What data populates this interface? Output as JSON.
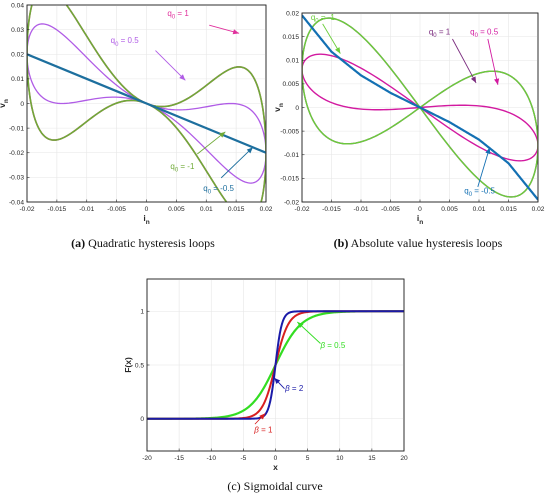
{
  "colors": {
    "q1": "#e0309c",
    "q05": "#b05ce6",
    "qm1": "#6faa37",
    "qm05": "#1d6f9e",
    "q1_abs": "#7a2b7e",
    "q05_abs": "#d21aa0",
    "qm1_abs": "#6bcd3a",
    "qm05_abs": "#1370b3",
    "beta05": "#33dd22",
    "beta1": "#d81f1f",
    "beta2": "#1a1aa8",
    "axis": "#262626",
    "grid": "#e6e6e6"
  },
  "chart_data": [
    {
      "type": "line",
      "caption_bold": "(a)",
      "caption_text": " Quadratic hysteresis loops",
      "xlabel": "i",
      "xlabel_sub": "n",
      "ylabel": "v",
      "ylabel_sub": "n",
      "xlim": [
        -0.02,
        0.02
      ],
      "ylim": [
        -0.04,
        0.04
      ],
      "xticks": [
        -0.02,
        -0.015,
        -0.01,
        -0.005,
        0,
        0.005,
        0.01,
        0.015,
        0.02
      ],
      "xtick_labels": [
        "-0.02",
        "-0.015",
        "-0.01",
        "-0.005",
        "0",
        "0.005",
        "0.01",
        "0.015",
        "0.02"
      ],
      "yticks": [
        -0.04,
        -0.03,
        -0.02,
        -0.01,
        0,
        0.01,
        0.02,
        0.03,
        0.04
      ],
      "ytick_labels": [
        "-0.04",
        "-0.03",
        "-0.02",
        "-0.01",
        "0",
        "0.01",
        "0.02",
        "0.03",
        "0.04"
      ],
      "grid": true,
      "series": [
        {
          "name": "q0 = 1",
          "color_key": "q1",
          "kind": "loop",
          "amp": 0.02,
          "factor": 1.0,
          "linear": -1.0,
          "width": 1.6
        },
        {
          "name": "q0 = 0.5",
          "color_key": "q05",
          "kind": "loop",
          "amp": 0.02,
          "factor": 0.5,
          "linear": -1.0,
          "width": 1.3
        },
        {
          "name": "q0 = -1",
          "color_key": "qm1",
          "kind": "loop",
          "amp": 0.02,
          "factor": -1.0,
          "linear": -1.0,
          "width": 1.6
        },
        {
          "name": "q0 = -0.5",
          "color_key": "qm05",
          "kind": "line",
          "x": [
            -0.02,
            0.02
          ],
          "y": [
            0.02,
            -0.02
          ],
          "width": 2.2
        }
      ],
      "annotations": [
        {
          "label": "q",
          "sub": "0",
          "value": " = 1",
          "color_key": "q1",
          "tx": 0.0035,
          "ty": 0.0355,
          "ax": 0.0105,
          "ay": 0.0318,
          "hx": 0.0155,
          "hy": 0.0285
        },
        {
          "label": "q",
          "sub": "0",
          "value": " = 0.5",
          "color_key": "q05",
          "tx": -0.006,
          "ty": 0.0245,
          "ax": 0.0015,
          "ay": 0.0215,
          "hx": 0.0065,
          "hy": 0.0094
        },
        {
          "label": "q",
          "sub": "0",
          "value": " = -1",
          "color_key": "qm1",
          "tx": 0.004,
          "ty": -0.0265,
          "ax": 0.0085,
          "ay": -0.0205,
          "hx": 0.0132,
          "hy": -0.0115
        },
        {
          "label": "q",
          "sub": "0",
          "value": " = -0.5",
          "color_key": "qm05",
          "tx": 0.0095,
          "ty": -0.0355,
          "ax": 0.0125,
          "ay": -0.0302,
          "hx": 0.0178,
          "hy": -0.0178
        }
      ]
    },
    {
      "type": "line",
      "caption_bold": "(b)",
      "caption_text": " Absolute value hysteresis loops",
      "xlabel": "i",
      "xlabel_sub": "n",
      "ylabel": "v",
      "ylabel_sub": "n",
      "xlim": [
        -0.02,
        0.02
      ],
      "ylim": [
        -0.02,
        0.02
      ],
      "xticks": [
        -0.02,
        -0.015,
        -0.01,
        -0.005,
        0,
        0.005,
        0.01,
        0.015,
        0.02
      ],
      "xtick_labels": [
        "-0.02",
        "-0.015",
        "-0.01",
        "-0.005",
        "0",
        "0.005",
        "0.01",
        "0.015",
        "0.02"
      ],
      "yticks": [
        -0.02,
        -0.015,
        -0.01,
        -0.005,
        0,
        0.005,
        0.01,
        0.015,
        0.02
      ],
      "ytick_labels": [
        "-0.02",
        "-0.015",
        "-0.01",
        "-0.005",
        "0",
        "0.005",
        "0.01",
        "0.015",
        "0.02"
      ],
      "grid": true,
      "series": [
        {
          "name": "q0 = 1",
          "color_key": "q1_abs",
          "kind": "abs",
          "amp": 0.02,
          "factor": 0.65,
          "width": 1.4
        },
        {
          "name": "q0 = 0.5",
          "color_key": "q05_abs",
          "kind": "abs",
          "amp": 0.02,
          "factor": 0.25,
          "width": 1.4
        },
        {
          "name": "q0 = -1",
          "color_key": "qm1_abs",
          "kind": "abs",
          "amp": 0.02,
          "factor": -0.65,
          "width": 1.4
        },
        {
          "name": "q0 = -0.5",
          "color_key": "qm05_abs",
          "kind": "curve",
          "x": [
            -0.02,
            -0.015,
            -0.01,
            -0.005,
            0,
            0.005,
            0.01,
            0.015,
            0.02
          ],
          "y": [
            0.0195,
            0.0118,
            0.0068,
            0.0031,
            0,
            -0.0031,
            -0.0068,
            -0.0118,
            -0.0195
          ],
          "width": 2.2
        }
      ],
      "annotations": [
        {
          "label": "q",
          "sub": "0",
          "value": " = -1",
          "color_key": "qm1_abs",
          "tx": -0.0185,
          "ty": 0.0185,
          "ax": -0.0165,
          "ay": 0.0177,
          "hx": -0.0135,
          "hy": 0.0114
        },
        {
          "label": "q",
          "sub": "0",
          "value": " = 1",
          "color_key": "q1_abs",
          "tx": 0.0015,
          "ty": 0.0155,
          "ax": 0.0055,
          "ay": 0.0145,
          "hx": 0.0095,
          "hy": 0.0052
        },
        {
          "label": "q",
          "sub": "0",
          "value": " = 0.5",
          "color_key": "q05_abs",
          "tx": 0.0085,
          "ty": 0.0155,
          "ax": 0.0115,
          "ay": 0.0145,
          "hx": 0.0132,
          "hy": 0.0048
        },
        {
          "label": "q",
          "sub": "0",
          "value": " = -0.5",
          "color_key": "qm05_abs",
          "tx": 0.0075,
          "ty": -0.0182,
          "ax": 0.0098,
          "ay": -0.0168,
          "hx": 0.0118,
          "hy": -0.0085
        }
      ]
    },
    {
      "type": "line",
      "caption_bold": "",
      "caption_text": "(c) Sigmoidal curve",
      "xlabel": "x",
      "ylabel": "F(x)",
      "xlim": [
        -20,
        20
      ],
      "ylim": [
        -0.3,
        1.3
      ],
      "xticks": [
        -20,
        -15,
        -10,
        -5,
        0,
        5,
        10,
        15,
        20
      ],
      "xtick_labels": [
        "-20",
        "-15",
        "-10",
        "-5",
        "0",
        "5",
        "10",
        "15",
        "20"
      ],
      "yticks": [
        0,
        0.5,
        1
      ],
      "ytick_labels": [
        "0",
        "0.5",
        "1"
      ],
      "grid": true,
      "series": [
        {
          "name": "β = 0.5",
          "color_key": "beta05",
          "kind": "sigmoid",
          "beta": 0.5,
          "width": 2.2
        },
        {
          "name": "β = 1",
          "color_key": "beta1",
          "kind": "sigmoid",
          "beta": 1.0,
          "width": 2.0
        },
        {
          "name": "β = 2",
          "color_key": "beta2",
          "kind": "sigmoid",
          "beta": 2.0,
          "width": 2.0
        }
      ],
      "annotations": [
        {
          "label": "β",
          "sub": "",
          "value": " = 0.5",
          "color_key": "beta05",
          "tx": 7.0,
          "ty": 0.66,
          "ax": 7.0,
          "ay": 0.7,
          "hx": 3.4,
          "hy": 0.9
        },
        {
          "label": "β",
          "sub": "",
          "value": " = 2",
          "color_key": "beta2",
          "tx": 1.5,
          "ty": 0.26,
          "ax": 1.4,
          "ay": 0.28,
          "hx": -0.2,
          "hy": 0.38
        },
        {
          "label": "β",
          "sub": "",
          "value": " = 1",
          "color_key": "beta1",
          "tx": -3.3,
          "ty": -0.13,
          "ax": -3.2,
          "ay": -0.05,
          "hx": -1.6,
          "hy": 0.05
        }
      ]
    }
  ]
}
